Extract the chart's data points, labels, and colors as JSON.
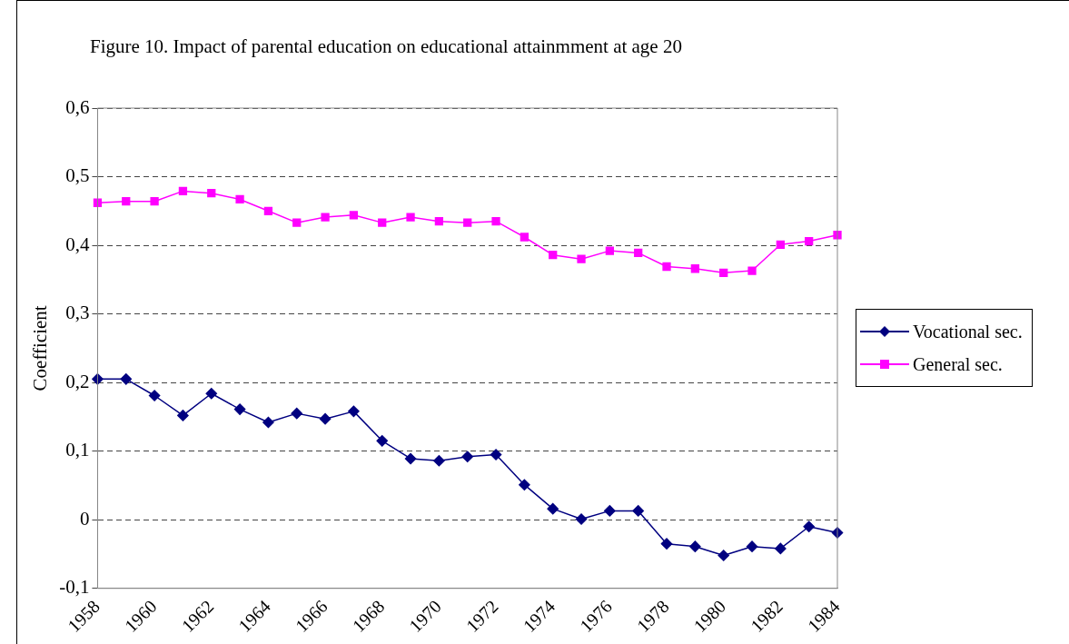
{
  "chart_data": {
    "type": "line",
    "title": "Figure 10. Impact of parental education on educational attainmment at age 20",
    "ylabel": "Coefficient",
    "categories": [
      "1958",
      null,
      "1960",
      null,
      "1962",
      null,
      "1964",
      null,
      "1966",
      null,
      "1968",
      null,
      "1970",
      null,
      "1972",
      null,
      "1974",
      null,
      "1976",
      null,
      "1978",
      null,
      "1980",
      null,
      "1982",
      null,
      "1984"
    ],
    "series": [
      {
        "name": "Vocational sec.",
        "color": "#000080",
        "marker": "diamond",
        "values": [
          0.205,
          0.205,
          0.181,
          0.152,
          0.184,
          0.161,
          0.142,
          0.155,
          0.147,
          0.158,
          0.115,
          0.089,
          0.086,
          0.092,
          0.095,
          0.051,
          0.016,
          0.001,
          0.013,
          0.013,
          -0.035,
          -0.039,
          -0.052,
          -0.039,
          -0.042,
          -0.01,
          -0.019
        ]
      },
      {
        "name": "General sec.",
        "color": "#ff00ff",
        "marker": "square",
        "values": [
          0.462,
          0.464,
          0.464,
          0.479,
          0.476,
          0.467,
          0.45,
          0.433,
          0.441,
          0.444,
          0.433,
          0.441,
          0.435,
          0.433,
          0.435,
          0.412,
          0.386,
          0.38,
          0.392,
          0.389,
          0.369,
          0.366,
          0.36,
          0.363,
          0.401,
          0.406,
          0.415
        ]
      }
    ],
    "ylim": [
      -0.1,
      0.6
    ],
    "yticks": [
      {
        "value": -0.1,
        "label": "-0,1"
      },
      {
        "value": 0,
        "label": "0"
      },
      {
        "value": 0.1,
        "label": "0,1"
      },
      {
        "value": 0.2,
        "label": "0,2"
      },
      {
        "value": 0.3,
        "label": "0,3"
      },
      {
        "value": 0.4,
        "label": "0,4"
      },
      {
        "value": 0.5,
        "label": "0,5"
      },
      {
        "value": 0.6,
        "label": "0,6"
      }
    ],
    "grid": "y",
    "legend": "right",
    "line_style": "solid"
  }
}
